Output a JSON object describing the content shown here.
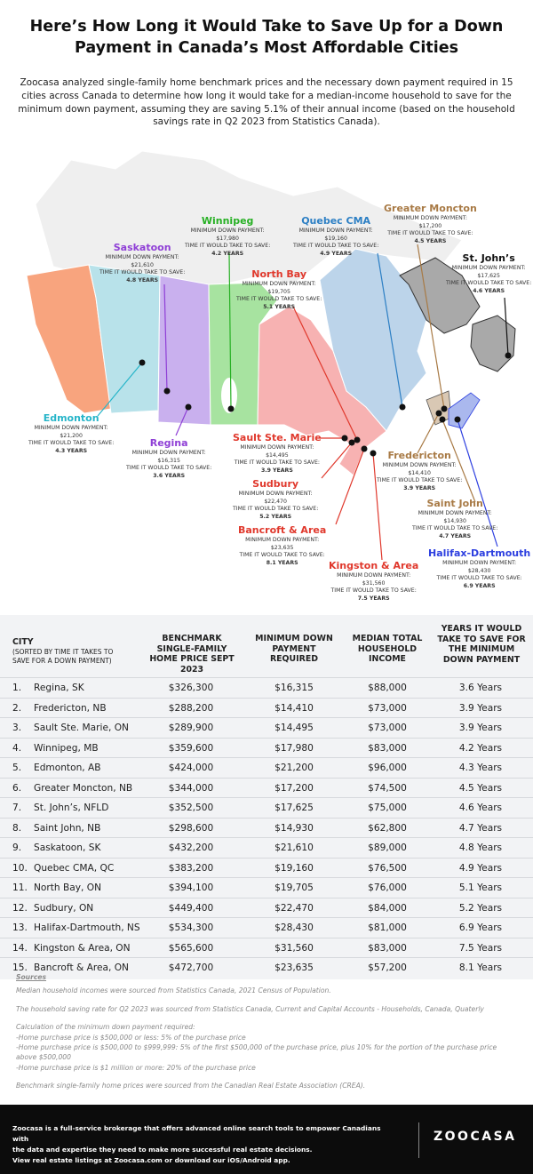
{
  "title": "Here’s How Long it Would Take to Save Up for a Down Payment in Canada’s Most Affordable Cities",
  "intro": "Zoocasa analyzed single-family home benchmark prices and the necessary down payment required in 15 cities across Canada to determine how long it would take for a median-income household to save for the minimum down payment, assuming they are saving 5.1% of their annual income (based on the household savings rate in Q2 2023 from Statistics Canada).",
  "map": {
    "min_caption": "MINIMUM DOWN PAYMENT:",
    "time_caption": "TIME IT WOULD TAKE TO SAVE:",
    "colors": {
      "bc": "#f8a47e",
      "ab": "#b8e2ea",
      "sk": "#c9b0ee",
      "mb": "#a7e3a0",
      "on": "#f7b2b2",
      "qc": "#bcd4ea",
      "nl": "#a9a9a9",
      "mar": "#d9c8b4",
      "ns": "#aab8ee",
      "north": "#efefef"
    },
    "cities": [
      {
        "name": "Winnipeg",
        "min": "$17,980",
        "years": "4.2 YEARS",
        "color": "#27b024"
      },
      {
        "name": "Quebec CMA",
        "min": "$19,160",
        "years": "4.9 YEARS",
        "color": "#2c7fc4"
      },
      {
        "name": "Greater Moncton",
        "min": "$17,200",
        "years": "4.5 YEARS",
        "color": "#a87a45"
      },
      {
        "name": "Saskatoon",
        "min": "$21,610",
        "years": "4.8 YEARS",
        "color": "#8f3fd6"
      },
      {
        "name": "North Bay",
        "min": "$19,705",
        "years": "5.1 YEARS",
        "color": "#e0382c"
      },
      {
        "name": "St. John’s",
        "min": "$17,625",
        "years": "4.6 YEARS",
        "color": "#111111"
      },
      {
        "name": "Edmonton",
        "min": "$21,200",
        "years": "4.3 YEARS",
        "color": "#27b5c9"
      },
      {
        "name": "Regina",
        "min": "$16,315",
        "years": "3.6 YEARS",
        "color": "#8f3fd6"
      },
      {
        "name": "Sault Ste. Marie",
        "min": "$14,495",
        "years": "3.9 YEARS",
        "color": "#e0382c"
      },
      {
        "name": "Fredericton",
        "min": "$14,410",
        "years": "3.9 YEARS",
        "color": "#a87a45"
      },
      {
        "name": "Sudbury",
        "min": "$22,470",
        "years": "5.2 YEARS",
        "color": "#e0382c"
      },
      {
        "name": "Saint John",
        "min": "$14,930",
        "years": "4.7 YEARS",
        "color": "#a87a45"
      },
      {
        "name": "Bancroft & Area",
        "min": "$23,635",
        "years": "8.1 YEARS",
        "color": "#e0382c"
      },
      {
        "name": "Halifax-Dartmouth",
        "min": "$28,430",
        "years": "6.9 YEARS",
        "color": "#2d3fe0"
      },
      {
        "name": "Kingston & Area",
        "min": "$31,560",
        "years": "7.5 YEARS",
        "color": "#e0382c"
      }
    ]
  },
  "table": {
    "headers": {
      "city": "CITY",
      "city_sub": "(SORTED BY TIME IT TAKES TO SAVE FOR A DOWN PAYMENT)",
      "price": "BENCHMARK SINGLE-FAMILY HOME PRICE SEPT 2023",
      "min": "MINIMUM DOWN PAYMENT REQUIRED",
      "income": "MEDIAN TOTAL HOUSEHOLD INCOME",
      "years": "YEARS IT WOULD TAKE TO SAVE FOR THE MINIMUM DOWN PAYMENT"
    },
    "rows": [
      {
        "rank": "1.",
        "city": "Regina, SK",
        "price": "$326,300",
        "min": "$16,315",
        "income": "$88,000",
        "years": "3.6 Years"
      },
      {
        "rank": "2.",
        "city": "Fredericton, NB",
        "price": "$288,200",
        "min": "$14,410",
        "income": "$73,000",
        "years": "3.9 Years"
      },
      {
        "rank": "3.",
        "city": "Sault Ste. Marie, ON",
        "price": "$289,900",
        "min": "$14,495",
        "income": "$73,000",
        "years": "3.9 Years"
      },
      {
        "rank": "4.",
        "city": "Winnipeg, MB",
        "price": "$359,600",
        "min": "$17,980",
        "income": "$83,000",
        "years": "4.2 Years"
      },
      {
        "rank": "5.",
        "city": "Edmonton, AB",
        "price": "$424,000",
        "min": "$21,200",
        "income": "$96,000",
        "years": "4.3 Years"
      },
      {
        "rank": "6.",
        "city": "Greater Moncton, NB",
        "price": "$344,000",
        "min": "$17,200",
        "income": "$74,500",
        "years": "4.5 Years"
      },
      {
        "rank": "7.",
        "city": "St. John’s, NFLD",
        "price": "$352,500",
        "min": "$17,625",
        "income": "$75,000",
        "years": "4.6 Years"
      },
      {
        "rank": "8.",
        "city": "Saint John, NB",
        "price": "$298,600",
        "min": "$14,930",
        "income": "$62,800",
        "years": "4.7 Years"
      },
      {
        "rank": "9.",
        "city": "Saskatoon, SK",
        "price": "$432,200",
        "min": "$21,610",
        "income": "$89,000",
        "years": "4.8 Years"
      },
      {
        "rank": "10.",
        "city": "Quebec CMA, QC",
        "price": "$383,200",
        "min": "$19,160",
        "income": "$76,500",
        "years": "4.9 Years"
      },
      {
        "rank": "11.",
        "city": "North Bay, ON",
        "price": "$394,100",
        "min": "$19,705",
        "income": "$76,000",
        "years": "5.1 Years"
      },
      {
        "rank": "12.",
        "city": "Sudbury, ON",
        "price": "$449,400",
        "min": "$22,470",
        "income": "$84,000",
        "years": "5.2 Years"
      },
      {
        "rank": "13.",
        "city": "Halifax-Dartmouth, NS",
        "price": "$534,300",
        "min": "$28,430",
        "income": "$81,000",
        "years": "6.9 Years"
      },
      {
        "rank": "14.",
        "city": "Kingston & Area, ON",
        "price": "$565,600",
        "min": "$31,560",
        "income": "$83,000",
        "years": "7.5 Years"
      },
      {
        "rank": "15.",
        "city": "Bancroft & Area, ON",
        "price": "$472,700",
        "min": "$23,635",
        "income": "$57,200",
        "years": "8.1 Years"
      }
    ]
  },
  "notes": {
    "heading": "Sources",
    "n1": "Median household incomes were sourced from Statistics Canada, 2021 Census of Population.",
    "n2": "The household saving rate for Q2 2023 was sourced from Statistics Canada, Current and Capital Accounts - Households, Canada, Quaterly",
    "n3a": "Calculation of the minimum down payment required:",
    "n3b": "-Home purchase price is $500,000 or less: 5% of the purchase price",
    "n3c": "-Home purchase price is $500,000 to $999,999: 5% of the first $500,000 of the purchase price, plus 10% for the portion of the purchase price above $500,000",
    "n3d": "-Home purchase price is $1 million or more: 20% of the purchase price",
    "n4": "Benchmark single-family home prices were sourced from the Canadian Real Estate Association (CREA)."
  },
  "footer": {
    "text1": "Zoocasa is a full-service brokerage that offers advanced online search tools to empower Canadians with",
    "text2": "the data and expertise they need to make more successful real estate decisions.",
    "text3": "View real estate listings at Zoocasa.com or download our iOS/Android app.",
    "logo": "ZOOCASA"
  }
}
